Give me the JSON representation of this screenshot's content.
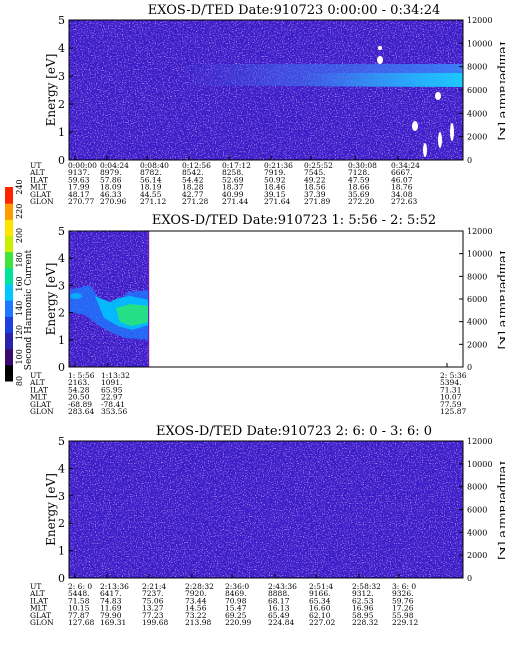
{
  "colorbar": {
    "label": "Second Harmonic Current",
    "ticks": [
      "80",
      "100",
      "120",
      "140",
      "160",
      "180",
      "200",
      "220",
      "240"
    ],
    "colors": [
      "#000000",
      "#3b0a6e",
      "#2a22a8",
      "#1d3fe0",
      "#1f78ff",
      "#00c7ff",
      "#00e39a",
      "#3fe33c",
      "#c7f000",
      "#ffe400",
      "#ff9a00",
      "#ff2400"
    ]
  },
  "chart_data": [
    {
      "type": "heatmap",
      "title": "EXOS-D/TED   Date:910723  0:00:00 - 0:34:24",
      "ylabel": "Energy [eV]",
      "ylabel_right": "Temperature [K]",
      "ylim": [
        0,
        5
      ],
      "y_ticks": [
        "0",
        "1",
        "2",
        "3",
        "4",
        "5"
      ],
      "y2lim": [
        0,
        12000
      ],
      "y2_ticks": [
        "0",
        "2000",
        "4000",
        "6000",
        "8000",
        "10000",
        "12000"
      ],
      "row_labels": [
        "UT",
        "ALT",
        "ILAT",
        "MLT",
        "GLAT",
        "GLON"
      ],
      "columns": [
        [
          "0:00:00",
          "9137.",
          "59.63",
          "17.99",
          "48.17",
          "270.77"
        ],
        [
          "0:04:24",
          "8979.",
          "57.86",
          "18.09",
          "46.33",
          "270.96"
        ],
        [
          "0:08:40",
          "8782.",
          "56.14",
          "18.19",
          "44.55",
          "271.12"
        ],
        [
          "0:12:56",
          "8542.",
          "54.42",
          "18.28",
          "42.77",
          "271.28"
        ],
        [
          "0:17:12",
          "8258.",
          "52.69",
          "18.37",
          "40.99",
          "271.44"
        ],
        [
          "0:21:36",
          "7919.",
          "50.92",
          "18.46",
          "39.15",
          "271.64"
        ],
        [
          "0:25:52",
          "7545.",
          "49.22",
          "18.56",
          "37.39",
          "271.89"
        ],
        [
          "0:30:08",
          "7128.",
          "47.59",
          "18.66",
          "35.69",
          "272.20"
        ],
        [
          "0:34:24",
          "6667.",
          "46.07",
          "18.76",
          "34.08",
          "272.63"
        ]
      ]
    },
    {
      "type": "heatmap",
      "title": "EXOS-D/TED   Date:910723  1: 5:56 - 2: 5:52",
      "ylabel": "Energy [eV]",
      "ylabel_right": "Temperature [K]",
      "ylim": [
        0,
        5
      ],
      "y_ticks": [
        "0",
        "1",
        "2",
        "3",
        "4",
        "5"
      ],
      "y2lim": [
        0,
        12000
      ],
      "y2_ticks": [
        "0",
        "2000",
        "4000",
        "6000",
        "8000",
        "10000",
        "12000"
      ],
      "row_labels": [
        "UT",
        "ALT",
        "ILAT",
        "MLT",
        "GLAT",
        "GLON"
      ],
      "data_extent_ut": [
        "1: 5:56",
        "1:13:32"
      ],
      "columns": [
        [
          "1: 5:56",
          "2163.",
          "54.28",
          "20.50",
          "-68.89",
          "283.64"
        ],
        [
          "1:13:32",
          "1091.",
          "65.95",
          "22.97",
          "-78.41",
          "353.56"
        ],
        [
          "2: 5:36",
          "5394.",
          "71.31",
          "10.07",
          "77.59",
          "125.87"
        ]
      ]
    },
    {
      "type": "heatmap",
      "title": "EXOS-D/TED   Date:910723  2: 6: 0 - 3: 6: 0",
      "ylabel": "Energy [eV]",
      "ylabel_right": "Temperature [K]",
      "ylim": [
        0,
        5
      ],
      "y_ticks": [
        "0",
        "1",
        "2",
        "3",
        "4",
        "5"
      ],
      "y2lim": [
        0,
        12000
      ],
      "y2_ticks": [
        "0",
        "2000",
        "4000",
        "6000",
        "8000",
        "10000",
        "12000"
      ],
      "row_labels": [
        "UT",
        "ALT",
        "ILAT",
        "MLT",
        "GLAT",
        "GLON"
      ],
      "columns": [
        [
          "2: 6: 0",
          "5448.",
          "71.58",
          "10.15",
          "77.87",
          "127.68"
        ],
        [
          "2:13:36",
          "6417.",
          "74.83",
          "11.69",
          "79.90",
          "169.31"
        ],
        [
          "2:21:4",
          "7237.",
          "75.06",
          "13.27",
          "77.23",
          "199.68"
        ],
        [
          "2:28:32",
          "7920.",
          "73.44",
          "14.56",
          "73.22",
          "213.98"
        ],
        [
          "2:36:0",
          "8469.",
          "70.98",
          "15.47",
          "69.25",
          "220.99"
        ],
        [
          "2:43:36",
          "8888.",
          "68.17",
          "16.13",
          "65.49",
          "224.84"
        ],
        [
          "2:51:4",
          "9166.",
          "65.34",
          "16.60",
          "62.10",
          "227.02"
        ],
        [
          "2:58:32",
          "9312.",
          "62.53",
          "16.96",
          "58.95",
          "228.32"
        ],
        [
          "3: 6: 0",
          "9326.",
          "59.76",
          "17.26",
          "55.98",
          "229.12"
        ]
      ]
    }
  ]
}
